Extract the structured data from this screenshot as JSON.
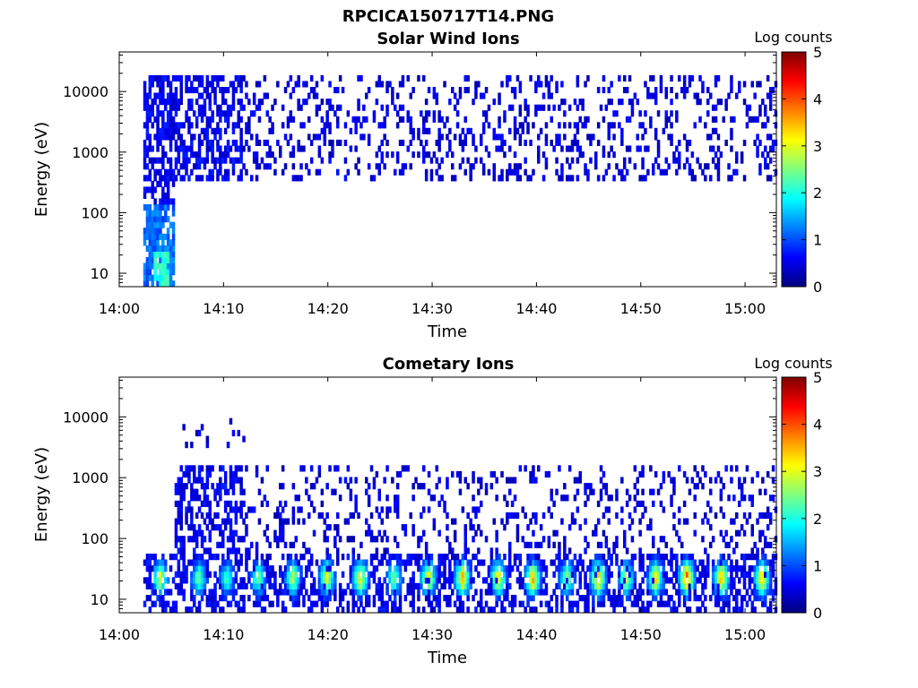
{
  "figure_title": "RPCICA150717T14.PNG",
  "colors": {
    "colormap": [
      "#00007f",
      "#0000ff",
      "#007fff",
      "#00ffff",
      "#7fff7f",
      "#ffff00",
      "#ff7f00",
      "#ff0000",
      "#7f0000"
    ],
    "axes": "#000000"
  },
  "chart_data": [
    {
      "type": "heatmap",
      "title": "Solar Wind Ions",
      "xlabel": "Time",
      "ylabel": "Energy (eV)",
      "xticks": [
        "14:00",
        "14:10",
        "14:20",
        "14:30",
        "14:40",
        "14:50",
        "15:00"
      ],
      "xlim_minutes": [
        0,
        63
      ],
      "yticks": [
        "10",
        "100",
        "1000",
        "10000"
      ],
      "ylim_eV": [
        6,
        45000
      ],
      "y_scale": "log",
      "colorbar": {
        "title": "Log counts",
        "ticks": [
          "0",
          "1",
          "2",
          "3",
          "4",
          "5"
        ],
        "range": [
          0,
          5
        ]
      },
      "regions": [
        {
          "t_start": 2.3,
          "t_end": 5.2,
          "e_low": 6,
          "e_high": 150,
          "level": 0.9,
          "density": 0.7
        },
        {
          "t_start": 3.2,
          "t_end": 4.6,
          "e_low": 6,
          "e_high": 25,
          "level": 1.8,
          "density": 0.8
        },
        {
          "t_start": 2.3,
          "t_end": 5.2,
          "e_low": 150,
          "e_high": 20000,
          "level": 0.3,
          "density": 0.6
        },
        {
          "t_start": 5.2,
          "t_end": 11.8,
          "e_low": 300,
          "e_high": 20000,
          "level": 0.3,
          "density": 0.55
        },
        {
          "t_start": 11.8,
          "t_end": 63,
          "e_low": 300,
          "e_high": 18000,
          "level": 0.2,
          "density": 0.22
        }
      ]
    },
    {
      "type": "heatmap",
      "title": "Cometary Ions",
      "xlabel": "Time",
      "ylabel": "Energy (eV)",
      "xticks": [
        "14:00",
        "14:10",
        "14:20",
        "14:30",
        "14:40",
        "14:50",
        "15:00"
      ],
      "xlim_minutes": [
        0,
        63
      ],
      "yticks": [
        "10",
        "100",
        "1000",
        "10000"
      ],
      "ylim_eV": [
        6,
        45000
      ],
      "y_scale": "log",
      "colorbar": {
        "title": "Log counts",
        "ticks": [
          "0",
          "1",
          "2",
          "3",
          "4",
          "5"
        ],
        "range": [
          0,
          5
        ]
      },
      "regions": [
        {
          "t_start": 2.3,
          "t_end": 63,
          "e_low": 6,
          "e_high": 60,
          "level": 0.3,
          "density": 0.45
        },
        {
          "t_start": 5.2,
          "t_end": 11.8,
          "e_low": 60,
          "e_high": 1500,
          "level": 0.3,
          "density": 0.5
        },
        {
          "t_start": 11.8,
          "t_end": 63,
          "e_low": 60,
          "e_high": 1500,
          "level": 0.2,
          "density": 0.18
        },
        {
          "t_start": 2.5,
          "t_end": 12,
          "e_low": 2500,
          "e_high": 13000,
          "level": 0.2,
          "density": 0.05
        }
      ],
      "bursts": [
        {
          "t": 3.8,
          "level": 2.8
        },
        {
          "t": 7.5,
          "level": 2.3
        },
        {
          "t": 10.2,
          "level": 2.0
        },
        {
          "t": 13.2,
          "level": 2.3
        },
        {
          "t": 16.5,
          "level": 2.7
        },
        {
          "t": 19.8,
          "level": 2.9
        },
        {
          "t": 23.0,
          "level": 3.0
        },
        {
          "t": 26.2,
          "level": 2.5
        },
        {
          "t": 29.5,
          "level": 3.1
        },
        {
          "t": 32.8,
          "level": 3.3
        },
        {
          "t": 36.2,
          "level": 3.2
        },
        {
          "t": 39.5,
          "level": 3.4
        },
        {
          "t": 42.8,
          "level": 2.6
        },
        {
          "t": 45.8,
          "level": 3.4
        },
        {
          "t": 48.5,
          "level": 2.8
        },
        {
          "t": 51.3,
          "level": 3.1
        },
        {
          "t": 54.3,
          "level": 3.8
        },
        {
          "t": 57.6,
          "level": 3.4
        },
        {
          "t": 61.5,
          "level": 3.3
        }
      ]
    }
  ]
}
